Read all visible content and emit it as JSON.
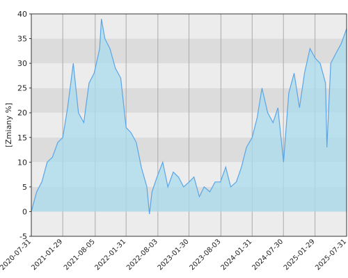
{
  "chart_data": {
    "type": "line",
    "y_label": "[Zmiany %]",
    "x": [
      "2020-07-31",
      "2020-08-31",
      "2020-09-30",
      "2020-10-31",
      "2020-11-30",
      "2020-12-31",
      "2021-01-29",
      "2021-02-26",
      "2021-03-31",
      "2021-04-30",
      "2021-05-31",
      "2021-06-30",
      "2021-07-30",
      "2021-08-31",
      "2021-09-10",
      "2021-09-30",
      "2021-10-29",
      "2021-11-30",
      "2021-12-31",
      "2022-01-31",
      "2022-02-28",
      "2022-03-31",
      "2022-04-29",
      "2022-05-31",
      "2022-06-15",
      "2022-06-30",
      "2022-07-29",
      "2022-08-31",
      "2022-09-30",
      "2022-10-31",
      "2022-11-30",
      "2022-12-30",
      "2023-01-31",
      "2023-02-28",
      "2023-03-31",
      "2023-04-28",
      "2023-05-31",
      "2023-06-30",
      "2023-07-31",
      "2023-08-31",
      "2023-09-29",
      "2023-10-31",
      "2023-11-30",
      "2023-12-29",
      "2024-01-31",
      "2024-02-29",
      "2024-03-28",
      "2024-04-30",
      "2024-05-31",
      "2024-06-28",
      "2024-07-31",
      "2024-08-30",
      "2024-09-30",
      "2024-10-31",
      "2024-11-29",
      "2024-12-31",
      "2025-01-31",
      "2025-02-28",
      "2025-03-31",
      "2025-04-08",
      "2025-04-30",
      "2025-05-30",
      "2025-06-30",
      "2025-07-31"
    ],
    "series": [
      {
        "color": "#5aa5e6",
        "fill": "#a9dcef",
        "values": [
          0,
          4,
          6,
          10,
          11,
          14,
          15,
          21,
          30,
          20,
          18,
          26,
          28,
          33,
          39,
          35,
          33,
          29,
          27,
          17,
          16,
          14,
          9,
          5,
          -0.5,
          4,
          7,
          10,
          5,
          8,
          7,
          5,
          6,
          7,
          3,
          5,
          4,
          6,
          6,
          9,
          5,
          6,
          9,
          13,
          15,
          19,
          25,
          20,
          18,
          21,
          10,
          24,
          28,
          21,
          28,
          33,
          31,
          30,
          26,
          13,
          30,
          32,
          34,
          37
        ]
      }
    ],
    "xlim": [
      "2020-07-31",
      "2025-07-31"
    ],
    "xticks": [
      "2020-07-31",
      "2021-01-29",
      "2021-08-05",
      "2022-01-31",
      "2022-08-03",
      "2023-01-30",
      "2023-08-03",
      "2024-01-31",
      "2024-07-30",
      "2025-01-29",
      "2025-07-31"
    ],
    "ylim": [
      -5,
      40
    ],
    "yticks": [
      -5,
      0,
      5,
      10,
      15,
      20,
      25,
      30,
      35,
      40
    ],
    "band_colors": [
      "#ececec",
      "#dcdcdc"
    ],
    "grid": true
  }
}
